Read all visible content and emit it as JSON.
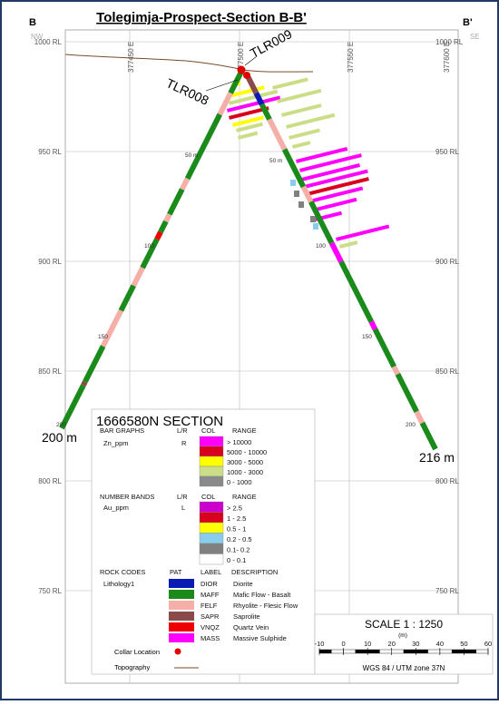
{
  "title": "Tolegimja-Prospect-Section B-B'",
  "corner_left": "B",
  "corner_right": "B'",
  "orient_left": "NW",
  "orient_right": "SE",
  "rl_labels": [
    "1000 RL",
    "950 RL",
    "900 RL",
    "850 RL",
    "800 RL",
    "750 RL"
  ],
  "easting_labels": [
    "377450 E",
    "377500 E",
    "377550 E",
    "377600 E"
  ],
  "holes": {
    "left": {
      "name": "TLR008",
      "end_label": "200 m",
      "depth_ticks": [
        "50 m",
        "100",
        "150",
        "200"
      ]
    },
    "right": {
      "name": "TLR009",
      "end_label": "216 m",
      "depth_ticks": [
        "50 m",
        "100",
        "150",
        "200"
      ]
    }
  },
  "legend": {
    "heading": "1666580N  SECTION",
    "bar_graphs": {
      "title": "BAR GRAPHS",
      "lr_header": "L/R",
      "col_header": "COL",
      "range_header": "RANGE",
      "field": "Zn_ppm",
      "side": "R",
      "ranges": [
        {
          "label": "> 10000",
          "color": "#ff00ff"
        },
        {
          "label": "5000 - 10000",
          "color": "#d8001c"
        },
        {
          "label": "3000 - 5000",
          "color": "#ffff00"
        },
        {
          "label": "1000 - 3000",
          "color": "#ccdd88"
        },
        {
          "label": "0 - 1000",
          "color": "#8a8a8a"
        }
      ]
    },
    "number_bands": {
      "title": "NUMBER BANDS",
      "lr_header": "L/R",
      "col_header": "COL",
      "range_header": "RANGE",
      "field": "Au_ppm",
      "side": "L",
      "ranges": [
        {
          "label": "> 2.5",
          "color": "#cc00cc"
        },
        {
          "label": "1 - 2.5",
          "color": "#d8001c"
        },
        {
          "label": "0.5 - 1",
          "color": "#ffff00"
        },
        {
          "label": "0.2 - 0.5",
          "color": "#88ccee"
        },
        {
          "label": "0.1- 0.2",
          "color": "#808080"
        },
        {
          "label": "0 - 0.1",
          "color": "#ffffff"
        }
      ]
    },
    "rock_codes": {
      "title": "ROCK CODES",
      "pat_header": "PAT",
      "label_header": "LABEL",
      "desc_header": "DESCRIPTION",
      "field": "Lithology1",
      "codes": [
        {
          "code": "DIOR",
          "desc": "Diorite",
          "color": "#0a1ab5"
        },
        {
          "code": "MAFF",
          "desc": "Mafic Flow - Basalt",
          "color": "#1a8a1a"
        },
        {
          "code": "FELF",
          "desc": "Rhyolite - Flesic Flow",
          "color": "#f4b0a8"
        },
        {
          "code": "SAPR",
          "desc": "Saprolite",
          "color": "#8a4a4a"
        },
        {
          "code": "VNQZ",
          "desc": "Quartz Vein",
          "color": "#ee0000"
        },
        {
          "code": "MASS",
          "desc": "Massive Sulphide",
          "color": "#ff00ff"
        }
      ]
    },
    "collar_label": "Collar Location",
    "topography_label": "Topography"
  },
  "scale": {
    "title": "SCALE  1 : 1250",
    "unit": "(m)",
    "ticks": [
      "-10",
      "0",
      "10",
      "20",
      "30",
      "40",
      "50",
      "60"
    ],
    "projection": "WGS 84 / UTM zone 37N"
  },
  "colors": {
    "frame": "#1f3a66",
    "grid": "#9a9a9a",
    "mafic": "#1a8a1a",
    "felsic": "#f4b0a8",
    "topography": "#7a4a2a",
    "collar": "#e00000"
  }
}
